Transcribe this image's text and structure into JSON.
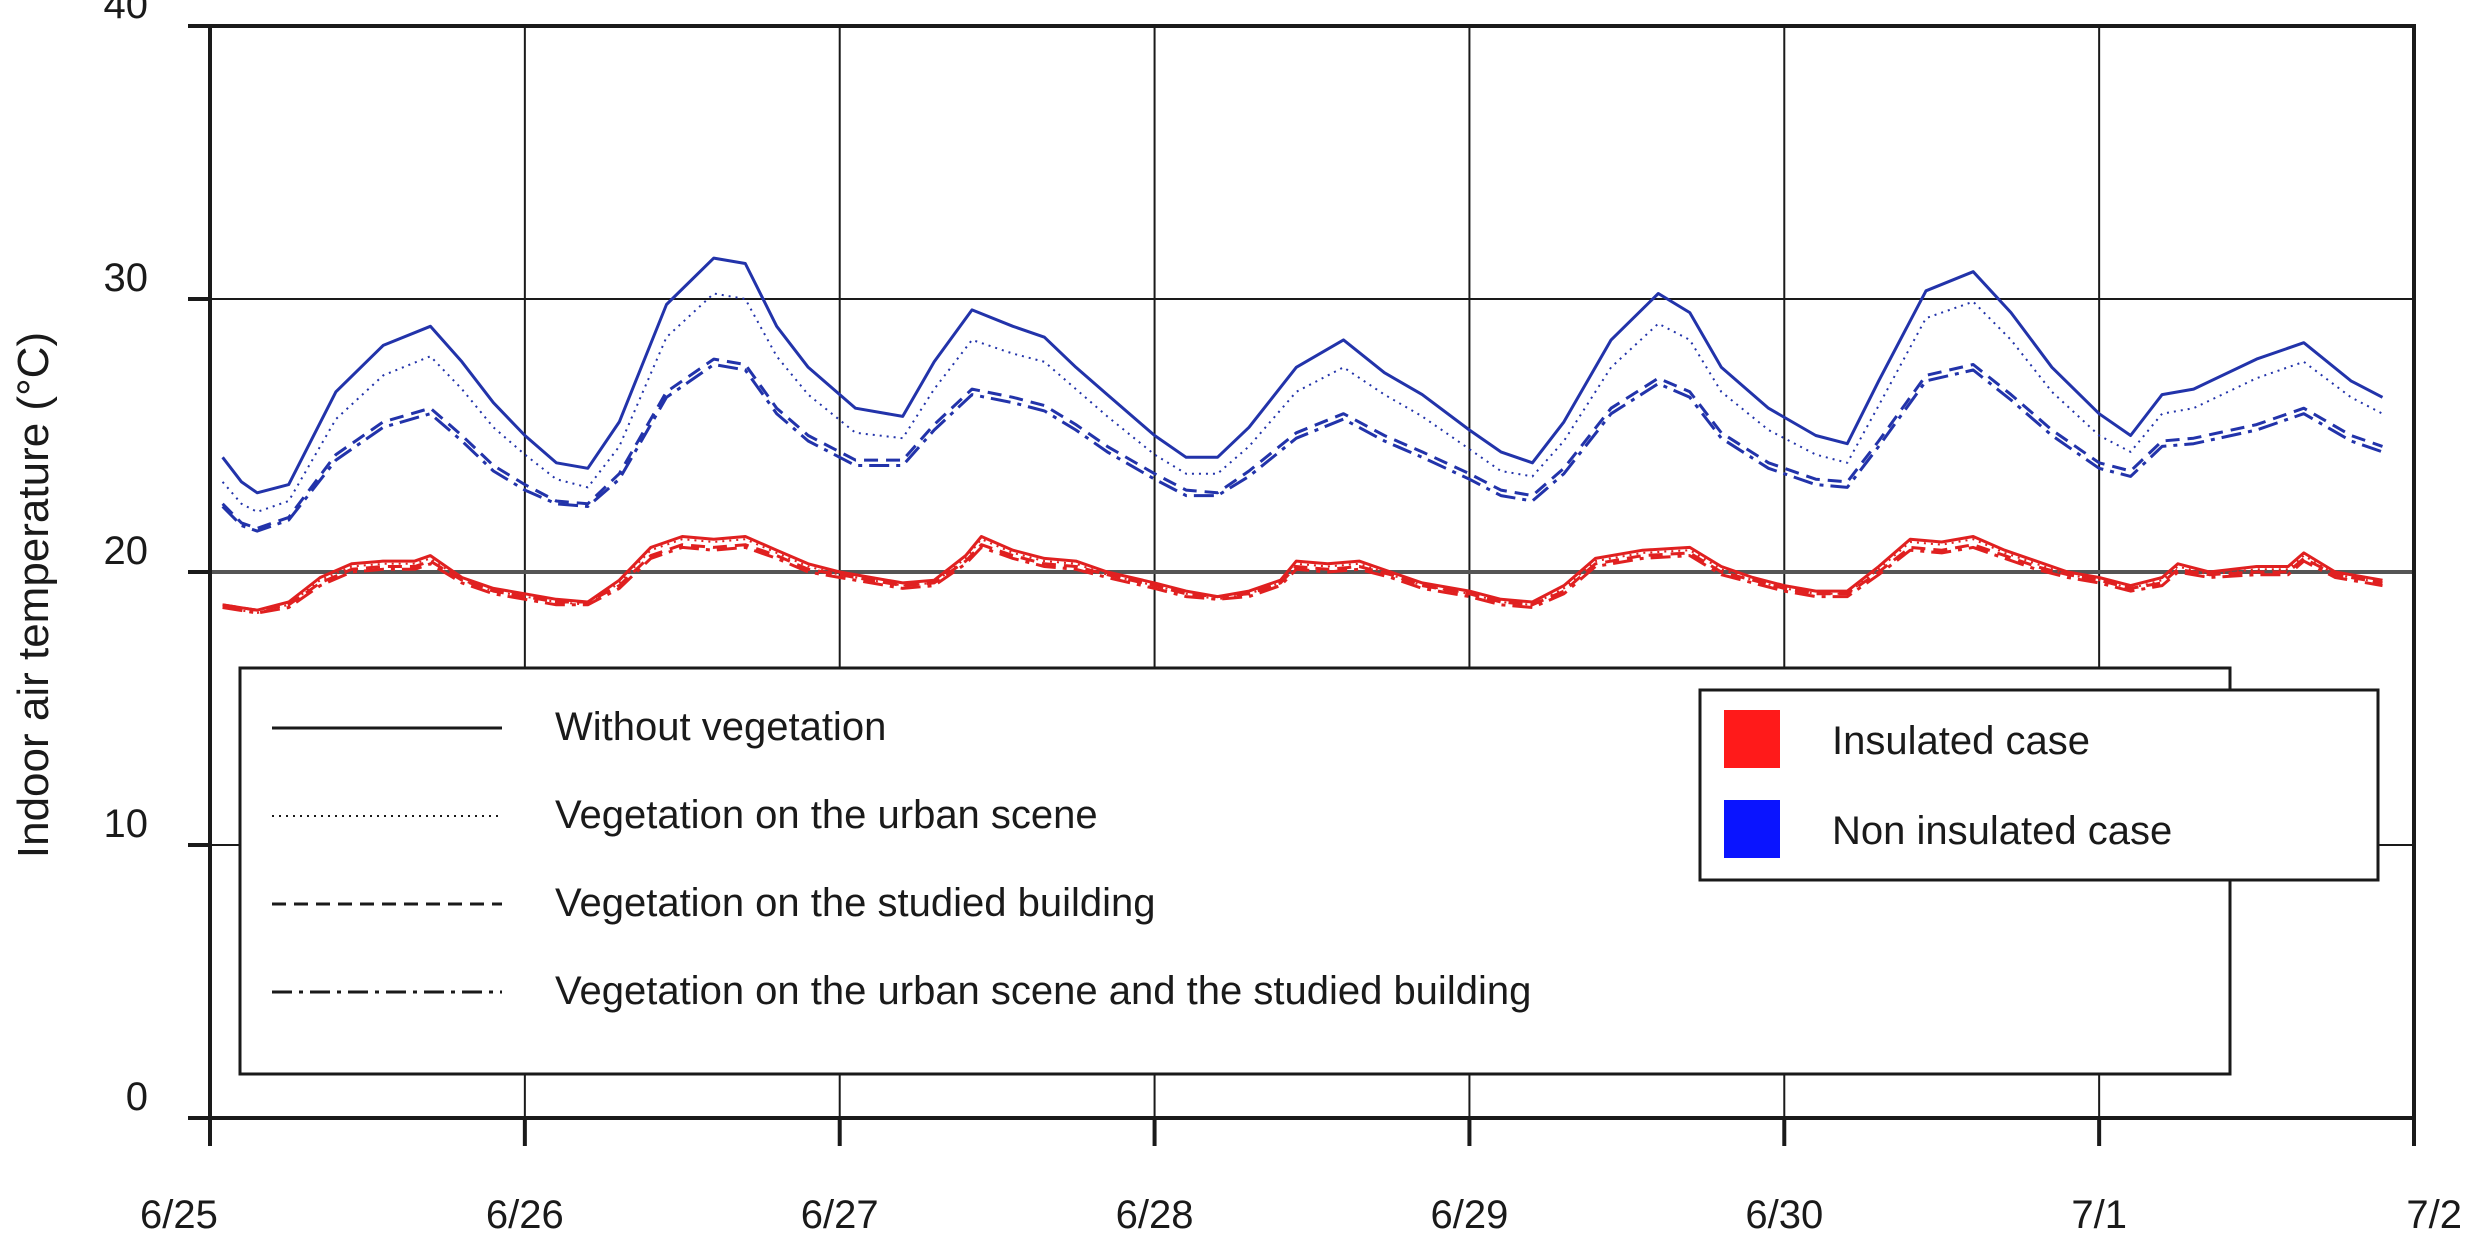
{
  "chart_data": {
    "type": "line",
    "title": "",
    "xlabel": "",
    "ylabel": "Indoor air temperature (°C)",
    "x_unit": "days since 6/25",
    "xlim": [
      0,
      7
    ],
    "ylim": [
      0,
      40
    ],
    "x_ticks": [
      {
        "value": 0,
        "label": "6/25"
      },
      {
        "value": 1,
        "label": "6/26"
      },
      {
        "value": 2,
        "label": "6/27"
      },
      {
        "value": 3,
        "label": "6/28"
      },
      {
        "value": 4,
        "label": "6/29"
      },
      {
        "value": 5,
        "label": "6/30"
      },
      {
        "value": 6,
        "label": "7/1"
      },
      {
        "value": 7,
        "label": "7/2"
      }
    ],
    "y_ticks": [
      {
        "value": 0,
        "label": "0"
      },
      {
        "value": 10,
        "label": "10"
      },
      {
        "value": 20,
        "label": "20"
      },
      {
        "value": 30,
        "label": "30"
      },
      {
        "value": 40,
        "label": "40"
      }
    ],
    "grid": true,
    "legend_styles": {
      "items": [
        {
          "label": "Without vegetation",
          "style": "solid"
        },
        {
          "label": "Vegetation on the urban scene",
          "style": "dotted"
        },
        {
          "label": "Vegetation on the studied building",
          "style": "dashed"
        },
        {
          "label": "Vegetation on the urban scene and the studied building",
          "style": "dashdot"
        }
      ]
    },
    "legend_colors": {
      "items": [
        {
          "label": "Insulated case",
          "color": "#ff1a1a"
        },
        {
          "label": "Non insulated case",
          "color": "#0a14ff"
        }
      ]
    },
    "series": [
      {
        "name": "Non insulated case - Without vegetation",
        "style": "solid",
        "color": "#2233aa",
        "x": [
          0.04,
          0.1,
          0.15,
          0.25,
          0.4,
          0.55,
          0.7,
          0.8,
          0.9,
          1.0,
          1.1,
          1.2,
          1.3,
          1.45,
          1.6,
          1.7,
          1.8,
          1.9,
          2.05,
          2.2,
          2.3,
          2.42,
          2.55,
          2.65,
          2.75,
          2.85,
          3.0,
          3.1,
          3.2,
          3.3,
          3.45,
          3.6,
          3.73,
          3.85,
          4.0,
          4.1,
          4.2,
          4.3,
          4.45,
          4.6,
          4.7,
          4.8,
          4.95,
          5.1,
          5.2,
          5.3,
          5.45,
          5.6,
          5.72,
          5.85,
          6.0,
          6.1,
          6.2,
          6.3,
          6.5,
          6.65,
          6.8,
          6.9
        ],
        "y": [
          24.2,
          23.3,
          22.9,
          23.2,
          26.6,
          28.3,
          29.0,
          27.7,
          26.2,
          25.0,
          24.0,
          23.8,
          25.5,
          29.8,
          31.5,
          31.3,
          29.0,
          27.5,
          26.0,
          25.7,
          27.7,
          29.6,
          29.0,
          28.6,
          27.5,
          26.5,
          25.0,
          24.2,
          24.2,
          25.3,
          27.5,
          28.5,
          27.3,
          26.5,
          25.2,
          24.4,
          24.0,
          25.5,
          28.5,
          30.2,
          29.5,
          27.5,
          26.0,
          25.0,
          24.7,
          27.0,
          30.3,
          31.0,
          29.5,
          27.5,
          25.8,
          25.0,
          26.5,
          26.7,
          27.8,
          28.4,
          27.0,
          26.4
        ]
      },
      {
        "name": "Non insulated case - Vegetation on the urban scene",
        "style": "dotted",
        "color": "#2233aa",
        "x": [
          0.04,
          0.1,
          0.15,
          0.25,
          0.4,
          0.55,
          0.7,
          0.8,
          0.9,
          1.0,
          1.1,
          1.2,
          1.3,
          1.45,
          1.6,
          1.7,
          1.8,
          1.9,
          2.05,
          2.2,
          2.3,
          2.42,
          2.55,
          2.65,
          2.75,
          2.85,
          3.0,
          3.1,
          3.2,
          3.3,
          3.45,
          3.6,
          3.73,
          3.85,
          4.0,
          4.1,
          4.2,
          4.3,
          4.45,
          4.6,
          4.7,
          4.8,
          4.95,
          5.1,
          5.2,
          5.3,
          5.45,
          5.6,
          5.72,
          5.85,
          6.0,
          6.1,
          6.2,
          6.3,
          6.5,
          6.65,
          6.8,
          6.9
        ],
        "y": [
          23.3,
          22.5,
          22.2,
          22.6,
          25.6,
          27.2,
          27.9,
          26.7,
          25.3,
          24.3,
          23.4,
          23.1,
          24.6,
          28.6,
          30.2,
          30.0,
          27.9,
          26.5,
          25.1,
          24.9,
          26.7,
          28.5,
          28.0,
          27.7,
          26.7,
          25.7,
          24.3,
          23.6,
          23.6,
          24.6,
          26.6,
          27.5,
          26.5,
          25.7,
          24.5,
          23.7,
          23.5,
          24.8,
          27.5,
          29.1,
          28.5,
          26.6,
          25.2,
          24.3,
          24.0,
          26.1,
          29.3,
          29.9,
          28.5,
          26.6,
          25.0,
          24.4,
          25.8,
          26.0,
          27.1,
          27.7,
          26.4,
          25.8
        ]
      },
      {
        "name": "Non insulated case - Vegetation on the studied building",
        "style": "dashed",
        "color": "#2233aa",
        "x": [
          0.04,
          0.1,
          0.15,
          0.25,
          0.4,
          0.55,
          0.7,
          0.8,
          0.9,
          1.0,
          1.1,
          1.2,
          1.3,
          1.45,
          1.6,
          1.7,
          1.8,
          1.9,
          2.05,
          2.2,
          2.3,
          2.42,
          2.55,
          2.65,
          2.75,
          2.85,
          3.0,
          3.1,
          3.2,
          3.3,
          3.45,
          3.6,
          3.73,
          3.85,
          4.0,
          4.1,
          4.2,
          4.3,
          4.45,
          4.6,
          4.7,
          4.8,
          4.95,
          5.1,
          5.2,
          5.3,
          5.45,
          5.6,
          5.72,
          5.85,
          6.0,
          6.1,
          6.2,
          6.3,
          6.5,
          6.65,
          6.8,
          6.9
        ],
        "y": [
          22.5,
          21.8,
          21.6,
          22.0,
          24.3,
          25.5,
          26.0,
          25.0,
          23.9,
          23.2,
          22.6,
          22.5,
          23.6,
          26.6,
          27.8,
          27.6,
          26.0,
          25.0,
          24.1,
          24.1,
          25.4,
          26.7,
          26.4,
          26.1,
          25.4,
          24.6,
          23.6,
          23.0,
          22.9,
          23.7,
          25.1,
          25.8,
          25.0,
          24.4,
          23.6,
          23.0,
          22.8,
          23.8,
          26.0,
          27.1,
          26.6,
          25.1,
          24.0,
          23.4,
          23.3,
          24.8,
          27.2,
          27.6,
          26.5,
          25.2,
          24.0,
          23.7,
          24.8,
          24.9,
          25.4,
          26.0,
          25.0,
          24.6
        ]
      },
      {
        "name": "Non insulated case - Vegetation on the urban scene and the studied building",
        "style": "dashdot",
        "color": "#2233aa",
        "x": [
          0.04,
          0.1,
          0.15,
          0.25,
          0.4,
          0.55,
          0.7,
          0.8,
          0.9,
          1.0,
          1.1,
          1.2,
          1.3,
          1.45,
          1.6,
          1.7,
          1.8,
          1.9,
          2.05,
          2.2,
          2.3,
          2.42,
          2.55,
          2.65,
          2.75,
          2.85,
          3.0,
          3.1,
          3.2,
          3.3,
          3.45,
          3.6,
          3.73,
          3.85,
          4.0,
          4.1,
          4.2,
          4.3,
          4.45,
          4.6,
          4.7,
          4.8,
          4.95,
          5.1,
          5.2,
          5.3,
          5.45,
          5.6,
          5.72,
          5.85,
          6.0,
          6.1,
          6.2,
          6.3,
          6.5,
          6.65,
          6.8,
          6.9
        ],
        "y": [
          22.4,
          21.7,
          21.5,
          21.9,
          24.1,
          25.3,
          25.8,
          24.8,
          23.7,
          23.0,
          22.5,
          22.4,
          23.4,
          26.4,
          27.6,
          27.4,
          25.8,
          24.8,
          23.9,
          23.9,
          25.2,
          26.5,
          26.2,
          25.9,
          25.2,
          24.4,
          23.4,
          22.8,
          22.8,
          23.5,
          24.9,
          25.6,
          24.8,
          24.2,
          23.4,
          22.8,
          22.6,
          23.6,
          25.8,
          26.9,
          26.4,
          24.9,
          23.8,
          23.2,
          23.1,
          24.6,
          27.0,
          27.4,
          26.3,
          25.0,
          23.8,
          23.5,
          24.6,
          24.7,
          25.2,
          25.8,
          24.8,
          24.4
        ]
      },
      {
        "name": "Insulated case - Without vegetation",
        "style": "solid",
        "color": "#e02020",
        "x": [
          0.04,
          0.15,
          0.25,
          0.35,
          0.45,
          0.55,
          0.65,
          0.7,
          0.8,
          0.9,
          1.0,
          1.1,
          1.2,
          1.3,
          1.4,
          1.5,
          1.6,
          1.7,
          1.8,
          1.9,
          2.0,
          2.1,
          2.2,
          2.3,
          2.4,
          2.45,
          2.55,
          2.65,
          2.75,
          2.85,
          3.0,
          3.1,
          3.2,
          3.3,
          3.4,
          3.45,
          3.55,
          3.65,
          3.75,
          3.85,
          4.0,
          4.1,
          4.2,
          4.3,
          4.4,
          4.55,
          4.7,
          4.8,
          4.9,
          5.0,
          5.1,
          5.2,
          5.3,
          5.4,
          5.5,
          5.6,
          5.7,
          5.8,
          5.9,
          6.0,
          6.1,
          6.2,
          6.25,
          6.35,
          6.5,
          6.6,
          6.65,
          6.75,
          6.9
        ],
        "y": [
          18.8,
          18.6,
          18.9,
          19.8,
          20.3,
          20.4,
          20.4,
          20.6,
          19.8,
          19.4,
          19.2,
          19.0,
          18.9,
          19.7,
          20.9,
          21.3,
          21.2,
          21.3,
          20.8,
          20.3,
          20.0,
          19.8,
          19.6,
          19.7,
          20.6,
          21.3,
          20.8,
          20.5,
          20.4,
          20.0,
          19.6,
          19.3,
          19.1,
          19.3,
          19.7,
          20.4,
          20.3,
          20.4,
          20.0,
          19.6,
          19.3,
          19.0,
          18.9,
          19.5,
          20.5,
          20.8,
          20.9,
          20.2,
          19.8,
          19.5,
          19.3,
          19.3,
          20.2,
          21.2,
          21.1,
          21.3,
          20.8,
          20.4,
          20.0,
          19.8,
          19.5,
          19.8,
          20.3,
          20.0,
          20.2,
          20.2,
          20.7,
          20.0,
          19.7
        ]
      },
      {
        "name": "Insulated case - Vegetation on the urban scene",
        "style": "dotted",
        "color": "#e02020",
        "x": [
          0.04,
          0.15,
          0.25,
          0.35,
          0.45,
          0.55,
          0.65,
          0.7,
          0.8,
          0.9,
          1.0,
          1.1,
          1.2,
          1.3,
          1.4,
          1.5,
          1.6,
          1.7,
          1.8,
          1.9,
          2.0,
          2.1,
          2.2,
          2.3,
          2.4,
          2.45,
          2.55,
          2.65,
          2.75,
          2.85,
          3.0,
          3.1,
          3.2,
          3.3,
          3.4,
          3.45,
          3.55,
          3.65,
          3.75,
          3.85,
          4.0,
          4.1,
          4.2,
          4.3,
          4.4,
          4.55,
          4.7,
          4.8,
          4.9,
          5.0,
          5.1,
          5.2,
          5.3,
          5.4,
          5.5,
          5.6,
          5.7,
          5.8,
          5.9,
          6.0,
          6.1,
          6.2,
          6.25,
          6.35,
          6.5,
          6.6,
          6.65,
          6.75,
          6.9
        ],
        "y": [
          18.7,
          18.5,
          18.8,
          19.7,
          20.2,
          20.3,
          20.3,
          20.5,
          19.7,
          19.3,
          19.1,
          18.9,
          18.8,
          19.6,
          20.8,
          21.2,
          21.1,
          21.2,
          20.7,
          20.2,
          19.9,
          19.7,
          19.5,
          19.6,
          20.5,
          21.2,
          20.7,
          20.4,
          20.3,
          19.9,
          19.5,
          19.2,
          19.0,
          19.2,
          19.6,
          20.3,
          20.2,
          20.3,
          19.9,
          19.5,
          19.2,
          18.9,
          18.8,
          19.4,
          20.4,
          20.7,
          20.8,
          20.1,
          19.7,
          19.4,
          19.2,
          19.2,
          20.1,
          21.1,
          21.0,
          21.2,
          20.7,
          20.3,
          19.9,
          19.7,
          19.4,
          19.7,
          20.2,
          19.9,
          20.1,
          20.1,
          20.6,
          19.9,
          19.6
        ]
      },
      {
        "name": "Insulated case - Vegetation on the studied building",
        "style": "dashed",
        "color": "#e02020",
        "x": [
          0.04,
          0.15,
          0.25,
          0.35,
          0.45,
          0.55,
          0.65,
          0.7,
          0.8,
          0.9,
          1.0,
          1.1,
          1.2,
          1.3,
          1.4,
          1.5,
          1.6,
          1.7,
          1.8,
          1.9,
          2.0,
          2.1,
          2.2,
          2.3,
          2.4,
          2.45,
          2.55,
          2.65,
          2.75,
          2.85,
          3.0,
          3.1,
          3.2,
          3.3,
          3.4,
          3.45,
          3.55,
          3.65,
          3.75,
          3.85,
          4.0,
          4.1,
          4.2,
          4.3,
          4.4,
          4.55,
          4.7,
          4.8,
          4.9,
          5.0,
          5.1,
          5.2,
          5.3,
          5.4,
          5.5,
          5.6,
          5.7,
          5.8,
          5.9,
          6.0,
          6.1,
          6.2,
          6.25,
          6.35,
          6.5,
          6.6,
          6.65,
          6.75,
          6.9
        ],
        "y": [
          18.8,
          18.6,
          18.8,
          19.6,
          20.1,
          20.2,
          20.2,
          20.4,
          19.7,
          19.3,
          19.1,
          18.9,
          18.9,
          19.5,
          20.6,
          21.0,
          20.9,
          21.0,
          20.6,
          20.1,
          19.9,
          19.7,
          19.5,
          19.6,
          20.4,
          21.0,
          20.6,
          20.3,
          20.2,
          19.9,
          19.5,
          19.2,
          19.1,
          19.2,
          19.6,
          20.2,
          20.1,
          20.2,
          19.9,
          19.5,
          19.2,
          18.9,
          18.8,
          19.3,
          20.3,
          20.6,
          20.7,
          20.0,
          19.7,
          19.4,
          19.2,
          19.2,
          20.0,
          20.9,
          20.8,
          21.0,
          20.6,
          20.2,
          19.9,
          19.7,
          19.4,
          19.6,
          20.1,
          19.9,
          20.0,
          20.0,
          20.5,
          19.9,
          19.6
        ]
      },
      {
        "name": "Insulated case - Vegetation on the urban scene and the studied building",
        "style": "dashdot",
        "color": "#e02020",
        "x": [
          0.04,
          0.15,
          0.25,
          0.35,
          0.45,
          0.55,
          0.65,
          0.7,
          0.8,
          0.9,
          1.0,
          1.1,
          1.2,
          1.3,
          1.4,
          1.5,
          1.6,
          1.7,
          1.8,
          1.9,
          2.0,
          2.1,
          2.2,
          2.3,
          2.4,
          2.45,
          2.55,
          2.65,
          2.75,
          2.85,
          3.0,
          3.1,
          3.2,
          3.3,
          3.4,
          3.45,
          3.55,
          3.65,
          3.75,
          3.85,
          4.0,
          4.1,
          4.2,
          4.3,
          4.4,
          4.55,
          4.7,
          4.8,
          4.9,
          5.0,
          5.1,
          5.2,
          5.3,
          5.4,
          5.5,
          5.6,
          5.7,
          5.8,
          5.9,
          6.0,
          6.1,
          6.2,
          6.25,
          6.35,
          6.5,
          6.6,
          6.65,
          6.75,
          6.9
        ],
        "y": [
          18.7,
          18.5,
          18.7,
          19.5,
          20.0,
          20.1,
          20.1,
          20.3,
          19.6,
          19.2,
          19.0,
          18.8,
          18.8,
          19.4,
          20.5,
          20.9,
          20.8,
          20.9,
          20.5,
          20.0,
          19.8,
          19.6,
          19.4,
          19.5,
          20.3,
          20.9,
          20.5,
          20.2,
          20.1,
          19.8,
          19.4,
          19.1,
          19.0,
          19.1,
          19.5,
          20.1,
          20.0,
          20.1,
          19.8,
          19.4,
          19.1,
          18.8,
          18.7,
          19.2,
          20.2,
          20.5,
          20.6,
          19.9,
          19.6,
          19.3,
          19.1,
          19.1,
          19.9,
          20.8,
          20.7,
          20.9,
          20.5,
          20.1,
          19.8,
          19.6,
          19.3,
          19.5,
          20.0,
          19.8,
          19.9,
          19.9,
          20.4,
          19.8,
          19.5
        ]
      }
    ]
  }
}
